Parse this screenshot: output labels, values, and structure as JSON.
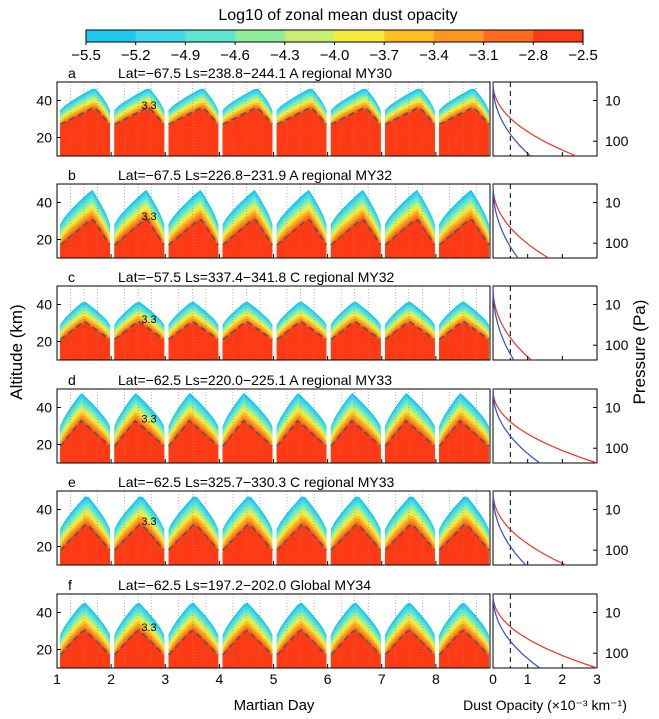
{
  "chart_data": {
    "type": "heatmap",
    "colorbar": {
      "title": "Log10 of zonal mean dust opacity",
      "levels": [
        -5.5,
        -5.2,
        -4.9,
        -4.6,
        -4.3,
        -4.0,
        -3.7,
        -3.4,
        -3.1,
        -2.8,
        -2.5
      ],
      "tick_labels": [
        "−5.5",
        "−5.2",
        "−4.9",
        "−4.6",
        "−4.3",
        "−4.0",
        "−3.7",
        "−3.4",
        "−3.1",
        "−2.8",
        "−2.5"
      ],
      "colors": [
        "#1ec8f0",
        "#3fd8ec",
        "#5fe6d2",
        "#90ee9a",
        "#c8f070",
        "#f6ea3c",
        "#ffc020",
        "#ff9620",
        "#ff6a1c",
        "#ff3a14"
      ]
    },
    "left_axis": {
      "xlabel": "Martian Day",
      "ylabel": "Altitude (km)",
      "xlim": [
        1,
        9
      ],
      "ylim": [
        10,
        50
      ],
      "xticks": [
        1,
        2,
        3,
        4,
        5,
        6,
        7,
        8
      ],
      "xtick_labels": [
        "1",
        "2",
        "3",
        "4",
        "5",
        "6",
        "7",
        "8"
      ],
      "yticks": [
        20,
        40
      ],
      "ytick_labels": [
        "20",
        "40"
      ],
      "contour_label": "3.3"
    },
    "right_axis": {
      "xlabel": "Dust Opacity (×10⁻³ km⁻¹)",
      "ylabel": "Pressure (Pa)",
      "xlim": [
        0,
        3
      ],
      "xticks": [
        0,
        1,
        2,
        3
      ],
      "xtick_labels": [
        "0",
        "1",
        "2",
        "3"
      ],
      "pressure_ticks": [
        "10",
        "100"
      ],
      "dashed_line_x": 0.5
    },
    "panels": [
      {
        "letter": "a",
        "title": "Lat=−67.5 Ls=238.8−244.1 A regional MY30",
        "max_opacity": 2.4,
        "day_min": 1.0,
        "day_max": 9.0,
        "peak_day_offset": 0.7,
        "top_km": 47,
        "bottom_km": 22
      },
      {
        "letter": "b",
        "title": "Lat=−67.5 Ls=226.8−231.9 A regional MY32",
        "max_opacity": 1.6,
        "day_min": 1.0,
        "day_max": 9.0,
        "peak_day_offset": 0.65,
        "top_km": 47,
        "bottom_km": 12
      },
      {
        "letter": "c",
        "title": "Lat=−57.5 Ls=337.4−341.8 C regional MY32",
        "max_opacity": 1.1,
        "day_min": 1.0,
        "day_max": 9.0,
        "peak_day_offset": 0.5,
        "top_km": 42,
        "bottom_km": 16
      },
      {
        "letter": "d",
        "title": "Lat=−62.5 Ls=220.0−225.1 A regional MY33",
        "max_opacity": 3.0,
        "day_min": 1.0,
        "day_max": 9.0,
        "peak_day_offset": 0.45,
        "top_km": 48,
        "bottom_km": 14
      },
      {
        "letter": "e",
        "title": "Lat=−62.5 Ls=325.7−330.3 C regional MY33",
        "max_opacity": 2.1,
        "day_min": 1.0,
        "day_max": 9.0,
        "peak_day_offset": 0.55,
        "top_km": 48,
        "bottom_km": 13
      },
      {
        "letter": "f",
        "title": "Lat=−62.5 Ls=197.2−202.0 Global MY34",
        "max_opacity": 3.0,
        "day_min": 1.0,
        "day_max": 9.0,
        "peak_day_offset": 0.5,
        "top_km": 46,
        "bottom_km": 12
      }
    ]
  }
}
